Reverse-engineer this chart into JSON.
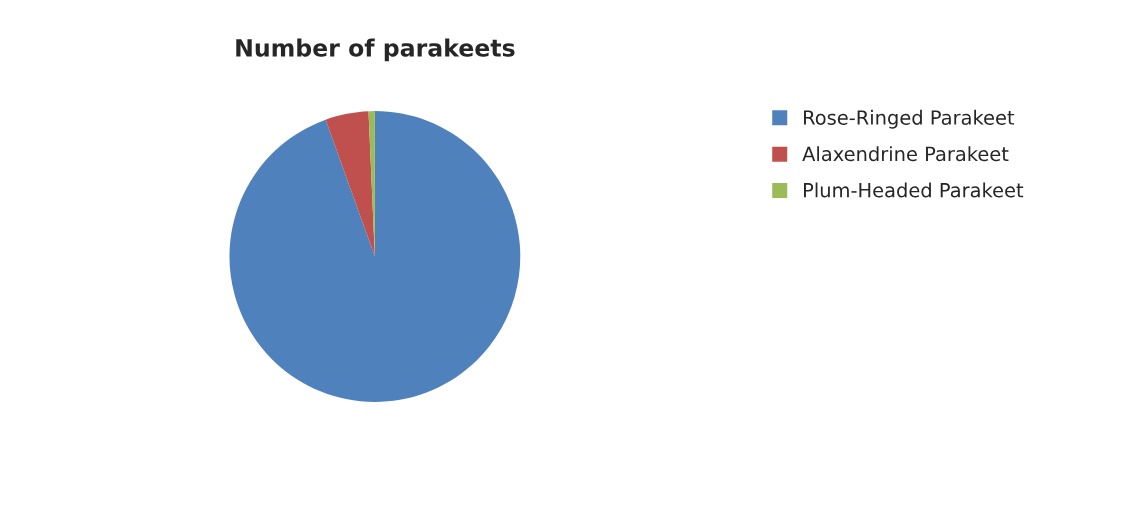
{
  "chart_data": {
    "type": "pie",
    "title": "Number of parakeets",
    "categories": [
      "Rose-Ringed Parakeet",
      "Alaxendrine Parakeet",
      "Plum-Headed Parakeet"
    ],
    "values": [
      94.5,
      4.8,
      0.7
    ],
    "colors": [
      "#4f81bd",
      "#c0504d",
      "#9bbb59"
    ],
    "legend": "right"
  }
}
